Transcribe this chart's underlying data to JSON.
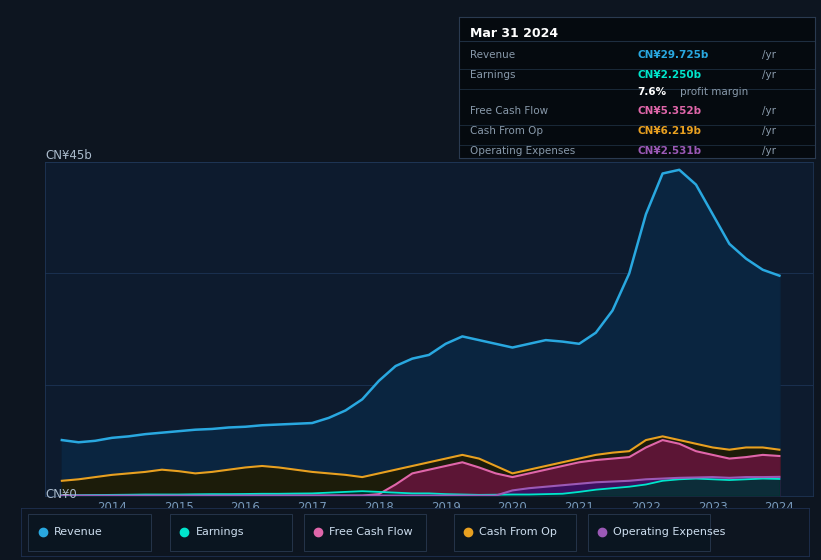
{
  "bg_color": "#0d1520",
  "chart_bg": "#0d1b2e",
  "title": "Mar 31 2024",
  "ylabel_top": "CN¥45b",
  "ylabel_bottom": "CN¥0",
  "years": [
    2013.25,
    2013.5,
    2013.75,
    2014.0,
    2014.25,
    2014.5,
    2014.75,
    2015.0,
    2015.25,
    2015.5,
    2015.75,
    2016.0,
    2016.25,
    2016.5,
    2016.75,
    2017.0,
    2017.25,
    2017.5,
    2017.75,
    2018.0,
    2018.25,
    2018.5,
    2018.75,
    2019.0,
    2019.25,
    2019.5,
    2019.75,
    2020.0,
    2020.25,
    2020.5,
    2020.75,
    2021.0,
    2021.25,
    2021.5,
    2021.75,
    2022.0,
    2022.25,
    2022.5,
    2022.75,
    2023.0,
    2023.25,
    2023.5,
    2023.75,
    2024.0
  ],
  "revenue": [
    7.5,
    7.2,
    7.4,
    7.8,
    8.0,
    8.3,
    8.5,
    8.7,
    8.9,
    9.0,
    9.2,
    9.3,
    9.5,
    9.6,
    9.7,
    9.8,
    10.5,
    11.5,
    13.0,
    15.5,
    17.5,
    18.5,
    19.0,
    20.5,
    21.5,
    21.0,
    20.5,
    20.0,
    20.5,
    21.0,
    20.8,
    20.5,
    22.0,
    25.0,
    30.0,
    38.0,
    43.5,
    44.0,
    42.0,
    38.0,
    34.0,
    32.0,
    30.5,
    29.7
  ],
  "cash_from_op": [
    2.0,
    2.2,
    2.5,
    2.8,
    3.0,
    3.2,
    3.5,
    3.3,
    3.0,
    3.2,
    3.5,
    3.8,
    4.0,
    3.8,
    3.5,
    3.2,
    3.0,
    2.8,
    2.5,
    3.0,
    3.5,
    4.0,
    4.5,
    5.0,
    5.5,
    5.0,
    4.0,
    3.0,
    3.5,
    4.0,
    4.5,
    5.0,
    5.5,
    5.8,
    6.0,
    7.5,
    8.0,
    7.5,
    7.0,
    6.5,
    6.2,
    6.5,
    6.5,
    6.2
  ],
  "free_cash_flow": [
    0.0,
    0.0,
    0.0,
    0.0,
    0.0,
    0.0,
    0.0,
    0.0,
    0.0,
    0.0,
    0.0,
    0.0,
    0.0,
    0.0,
    0.0,
    0.0,
    0.0,
    0.0,
    0.0,
    0.2,
    1.5,
    3.0,
    3.5,
    4.0,
    4.5,
    3.8,
    3.0,
    2.5,
    3.0,
    3.5,
    4.0,
    4.5,
    4.8,
    5.0,
    5.2,
    6.5,
    7.5,
    7.0,
    6.0,
    5.5,
    5.0,
    5.2,
    5.5,
    5.35
  ],
  "earnings": [
    0.05,
    0.05,
    0.08,
    0.1,
    0.12,
    0.15,
    0.15,
    0.15,
    0.18,
    0.2,
    0.2,
    0.22,
    0.25,
    0.25,
    0.28,
    0.3,
    0.4,
    0.5,
    0.6,
    0.5,
    0.4,
    0.3,
    0.3,
    0.2,
    0.15,
    0.1,
    0.12,
    0.15,
    0.15,
    0.2,
    0.25,
    0.5,
    0.8,
    1.0,
    1.2,
    1.5,
    2.0,
    2.2,
    2.3,
    2.2,
    2.1,
    2.2,
    2.3,
    2.25
  ],
  "operating_expenses": [
    0.0,
    0.0,
    0.0,
    0.0,
    0.0,
    0.0,
    0.0,
    0.0,
    0.0,
    0.0,
    0.0,
    0.0,
    0.0,
    0.0,
    0.0,
    0.0,
    0.0,
    0.0,
    0.0,
    0.0,
    0.0,
    0.0,
    0.0,
    0.0,
    0.0,
    0.0,
    0.0,
    0.7,
    1.0,
    1.2,
    1.4,
    1.6,
    1.8,
    1.9,
    2.0,
    2.2,
    2.3,
    2.4,
    2.45,
    2.5,
    2.4,
    2.5,
    2.5,
    2.53
  ],
  "revenue_color": "#29a8e0",
  "earnings_color": "#00e5cc",
  "fcf_color": "#e066aa",
  "cash_op_color": "#e8a020",
  "opex_color": "#9b59b6",
  "revenue_fill": "#0a2540",
  "earnings_fill": "#003530",
  "fcf_fill": "#5c1535",
  "cash_op_fill": "#1a1a00",
  "opex_fill": "#3d1060",
  "ylim": [
    0,
    45
  ],
  "xlim_min": 2013.0,
  "xlim_max": 2024.5,
  "xticks": [
    2014,
    2015,
    2016,
    2017,
    2018,
    2019,
    2020,
    2021,
    2022,
    2023,
    2024
  ],
  "grid_color": "#1a3050",
  "info_rows": [
    {
      "label": "Revenue",
      "value": "CN¥29.725b",
      "color": "#29a8e0"
    },
    {
      "label": "Earnings",
      "value": "CN¥2.250b",
      "color": "#00e5cc"
    },
    {
      "label": "",
      "value": "7.6%",
      "extra": "profit margin",
      "color": "#ffffff"
    },
    {
      "label": "Free Cash Flow",
      "value": "CN¥5.352b",
      "color": "#e066aa"
    },
    {
      "label": "Cash From Op",
      "value": "CN¥6.219b",
      "color": "#e8a020"
    },
    {
      "label": "Operating Expenses",
      "value": "CN¥2.531b",
      "color": "#9b59b6"
    }
  ],
  "legend_items": [
    {
      "label": "Revenue",
      "color": "#29a8e0"
    },
    {
      "label": "Earnings",
      "color": "#00e5cc"
    },
    {
      "label": "Free Cash Flow",
      "color": "#e066aa"
    },
    {
      "label": "Cash From Op",
      "color": "#e8a020"
    },
    {
      "label": "Operating Expenses",
      "color": "#9b59b6"
    }
  ]
}
